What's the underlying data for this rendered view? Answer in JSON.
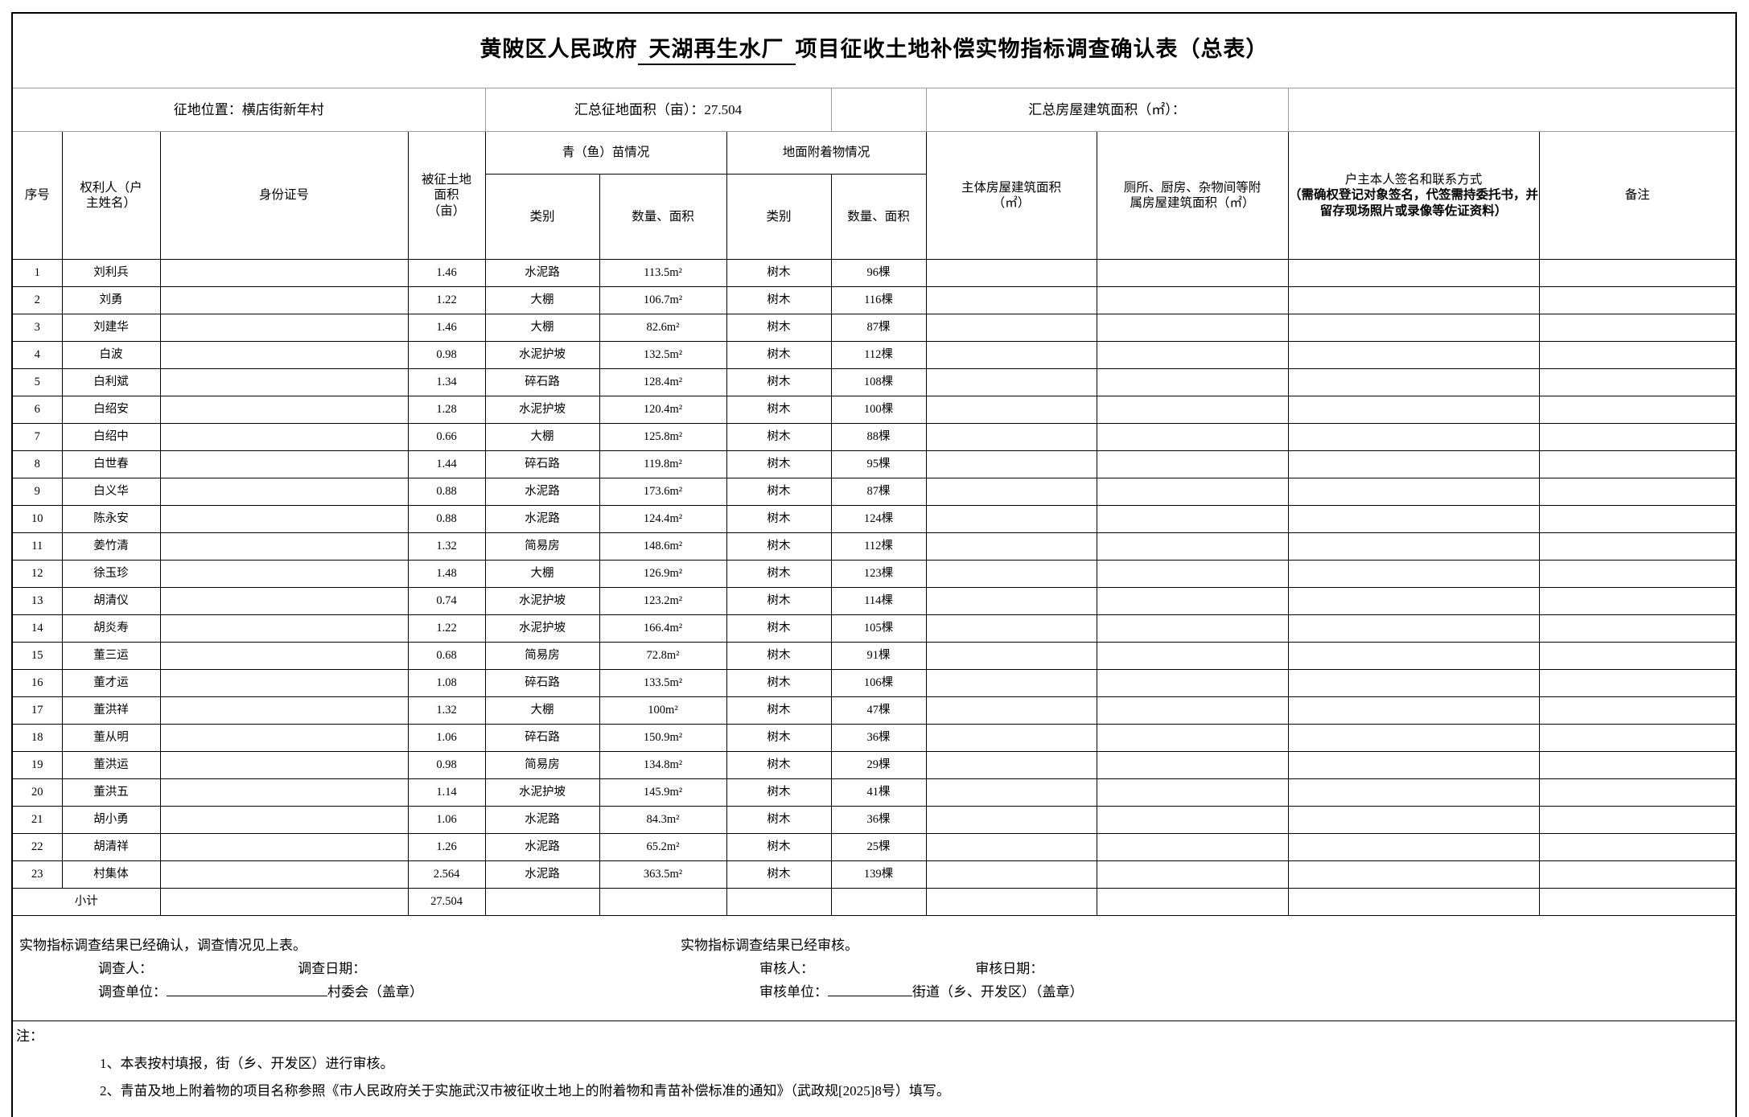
{
  "title": {
    "prefix": "黄陂区人民政府",
    "project": "天湖再生水厂",
    "suffix": "项目征收土地补偿实物指标调查确认表（总表）"
  },
  "summary": {
    "location": "征地位置：横店街新年村",
    "land_area_total": "汇总征地面积（亩）：27.504",
    "building_area_total": "汇总房屋建筑面积（㎡）："
  },
  "table": {
    "headers": {
      "seq": "序号",
      "owner": "权利人（户\n主姓名）",
      "id_number": "身份证号",
      "land_area": "被征土地\n面积\n（亩）",
      "crops_group": "青（鱼）苗情况",
      "attachments_group": "地面附着物情况",
      "crop_category": "类别",
      "crop_quantity": "数量、面积",
      "attachment_category": "类别",
      "attachment_quantity": "数量、面积",
      "main_building": "主体房屋建筑面积\n（㎡）",
      "aux_building": "厕所、厨房、杂物间等附\n属房屋建筑面积（㎡）",
      "signature_title": "户主本人签名和联系方式",
      "signature_note": "（需确权登记对象签名，代签需持委托书，并留存现场照片或录像等佐证资料）",
      "remark": "备注"
    },
    "rows": [
      {
        "seq": "1",
        "owner": "刘利兵",
        "land_area": "1.46",
        "crop_type": "水泥路",
        "crop_qty": "113.5m²",
        "att_type": "树木",
        "att_qty": "96棵"
      },
      {
        "seq": "2",
        "owner": "刘勇",
        "land_area": "1.22",
        "crop_type": "大棚",
        "crop_qty": "106.7m²",
        "att_type": "树木",
        "att_qty": "116棵"
      },
      {
        "seq": "3",
        "owner": "刘建华",
        "land_area": "1.46",
        "crop_type": "大棚",
        "crop_qty": "82.6m²",
        "att_type": "树木",
        "att_qty": "87棵"
      },
      {
        "seq": "4",
        "owner": "白波",
        "land_area": "0.98",
        "crop_type": "水泥护坡",
        "crop_qty": "132.5m²",
        "att_type": "树木",
        "att_qty": "112棵"
      },
      {
        "seq": "5",
        "owner": "白利斌",
        "land_area": "1.34",
        "crop_type": "碎石路",
        "crop_qty": "128.4m²",
        "att_type": "树木",
        "att_qty": "108棵"
      },
      {
        "seq": "6",
        "owner": "白绍安",
        "land_area": "1.28",
        "crop_type": "水泥护坡",
        "crop_qty": "120.4m²",
        "att_type": "树木",
        "att_qty": "100棵"
      },
      {
        "seq": "7",
        "owner": "白绍中",
        "land_area": "0.66",
        "crop_type": "大棚",
        "crop_qty": "125.8m²",
        "att_type": "树木",
        "att_qty": "88棵"
      },
      {
        "seq": "8",
        "owner": "白世春",
        "land_area": "1.44",
        "crop_type": "碎石路",
        "crop_qty": "119.8m²",
        "att_type": "树木",
        "att_qty": "95棵"
      },
      {
        "seq": "9",
        "owner": "白义华",
        "land_area": "0.88",
        "crop_type": "水泥路",
        "crop_qty": "173.6m²",
        "att_type": "树木",
        "att_qty": "87棵"
      },
      {
        "seq": "10",
        "owner": "陈永安",
        "land_area": "0.88",
        "crop_type": "水泥路",
        "crop_qty": "124.4m²",
        "att_type": "树木",
        "att_qty": "124棵"
      },
      {
        "seq": "11",
        "owner": "姜竹清",
        "land_area": "1.32",
        "crop_type": "简易房",
        "crop_qty": "148.6m²",
        "att_type": "树木",
        "att_qty": "112棵"
      },
      {
        "seq": "12",
        "owner": "徐玉珍",
        "land_area": "1.48",
        "crop_type": "大棚",
        "crop_qty": "126.9m²",
        "att_type": "树木",
        "att_qty": "123棵"
      },
      {
        "seq": "13",
        "owner": "胡清仪",
        "land_area": "0.74",
        "crop_type": "水泥护坡",
        "crop_qty": "123.2m²",
        "att_type": "树木",
        "att_qty": "114棵"
      },
      {
        "seq": "14",
        "owner": "胡炎寿",
        "land_area": "1.22",
        "crop_type": "水泥护坡",
        "crop_qty": "166.4m²",
        "att_type": "树木",
        "att_qty": "105棵"
      },
      {
        "seq": "15",
        "owner": "董三运",
        "land_area": "0.68",
        "crop_type": "简易房",
        "crop_qty": "72.8m²",
        "att_type": "树木",
        "att_qty": "91棵"
      },
      {
        "seq": "16",
        "owner": "董才运",
        "land_area": "1.08",
        "crop_type": "碎石路",
        "crop_qty": "133.5m²",
        "att_type": "树木",
        "att_qty": "106棵"
      },
      {
        "seq": "17",
        "owner": "董洪祥",
        "land_area": "1.32",
        "crop_type": "大棚",
        "crop_qty": "100m²",
        "att_type": "树木",
        "att_qty": "47棵"
      },
      {
        "seq": "18",
        "owner": "董从明",
        "land_area": "1.06",
        "crop_type": "碎石路",
        "crop_qty": "150.9m²",
        "att_type": "树木",
        "att_qty": "36棵"
      },
      {
        "seq": "19",
        "owner": "董洪运",
        "land_area": "0.98",
        "crop_type": "简易房",
        "crop_qty": "134.8m²",
        "att_type": "树木",
        "att_qty": "29棵"
      },
      {
        "seq": "20",
        "owner": "董洪五",
        "land_area": "1.14",
        "crop_type": "水泥护坡",
        "crop_qty": "145.9m²",
        "att_type": "树木",
        "att_qty": "41棵"
      },
      {
        "seq": "21",
        "owner": "胡小勇",
        "land_area": "1.06",
        "crop_type": "水泥路",
        "crop_qty": "84.3m²",
        "att_type": "树木",
        "att_qty": "36棵"
      },
      {
        "seq": "22",
        "owner": "胡清祥",
        "land_area": "1.26",
        "crop_type": "水泥路",
        "crop_qty": "65.2m²",
        "att_type": "树木",
        "att_qty": "25棵"
      },
      {
        "seq": "23",
        "owner": "村集体",
        "land_area": "2.564",
        "crop_type": "水泥路",
        "crop_qty": "363.5m²",
        "att_type": "树木",
        "att_qty": "139棵"
      }
    ],
    "subtotal": {
      "label": "小计",
      "land_area": "27.504"
    }
  },
  "footer": {
    "left": {
      "line1": "实物指标调查结果已经确认，调查情况见上表。",
      "surveyor_label": "调查人：",
      "survey_date_label": "调查日期：",
      "survey_unit_label": "调查单位：",
      "survey_unit_suffix": "村委会（盖章）"
    },
    "right": {
      "line1": "实物指标调查结果已经审核。",
      "reviewer_label": "审核人：",
      "review_date_label": "审核日期：",
      "review_unit_label": "审核单位：",
      "review_unit_suffix": "街道（乡、开发区）（盖章）"
    }
  },
  "notes": {
    "label": "注：",
    "items": [
      "1、本表按村填报，街（乡、开发区）进行审核。",
      "2、青苗及地上附着物的项目名称参照《市人民政府关于实施武汉市被征收土地上的附着物和青苗补偿标准的通知》（武政规[2025]8号）填写。"
    ]
  }
}
